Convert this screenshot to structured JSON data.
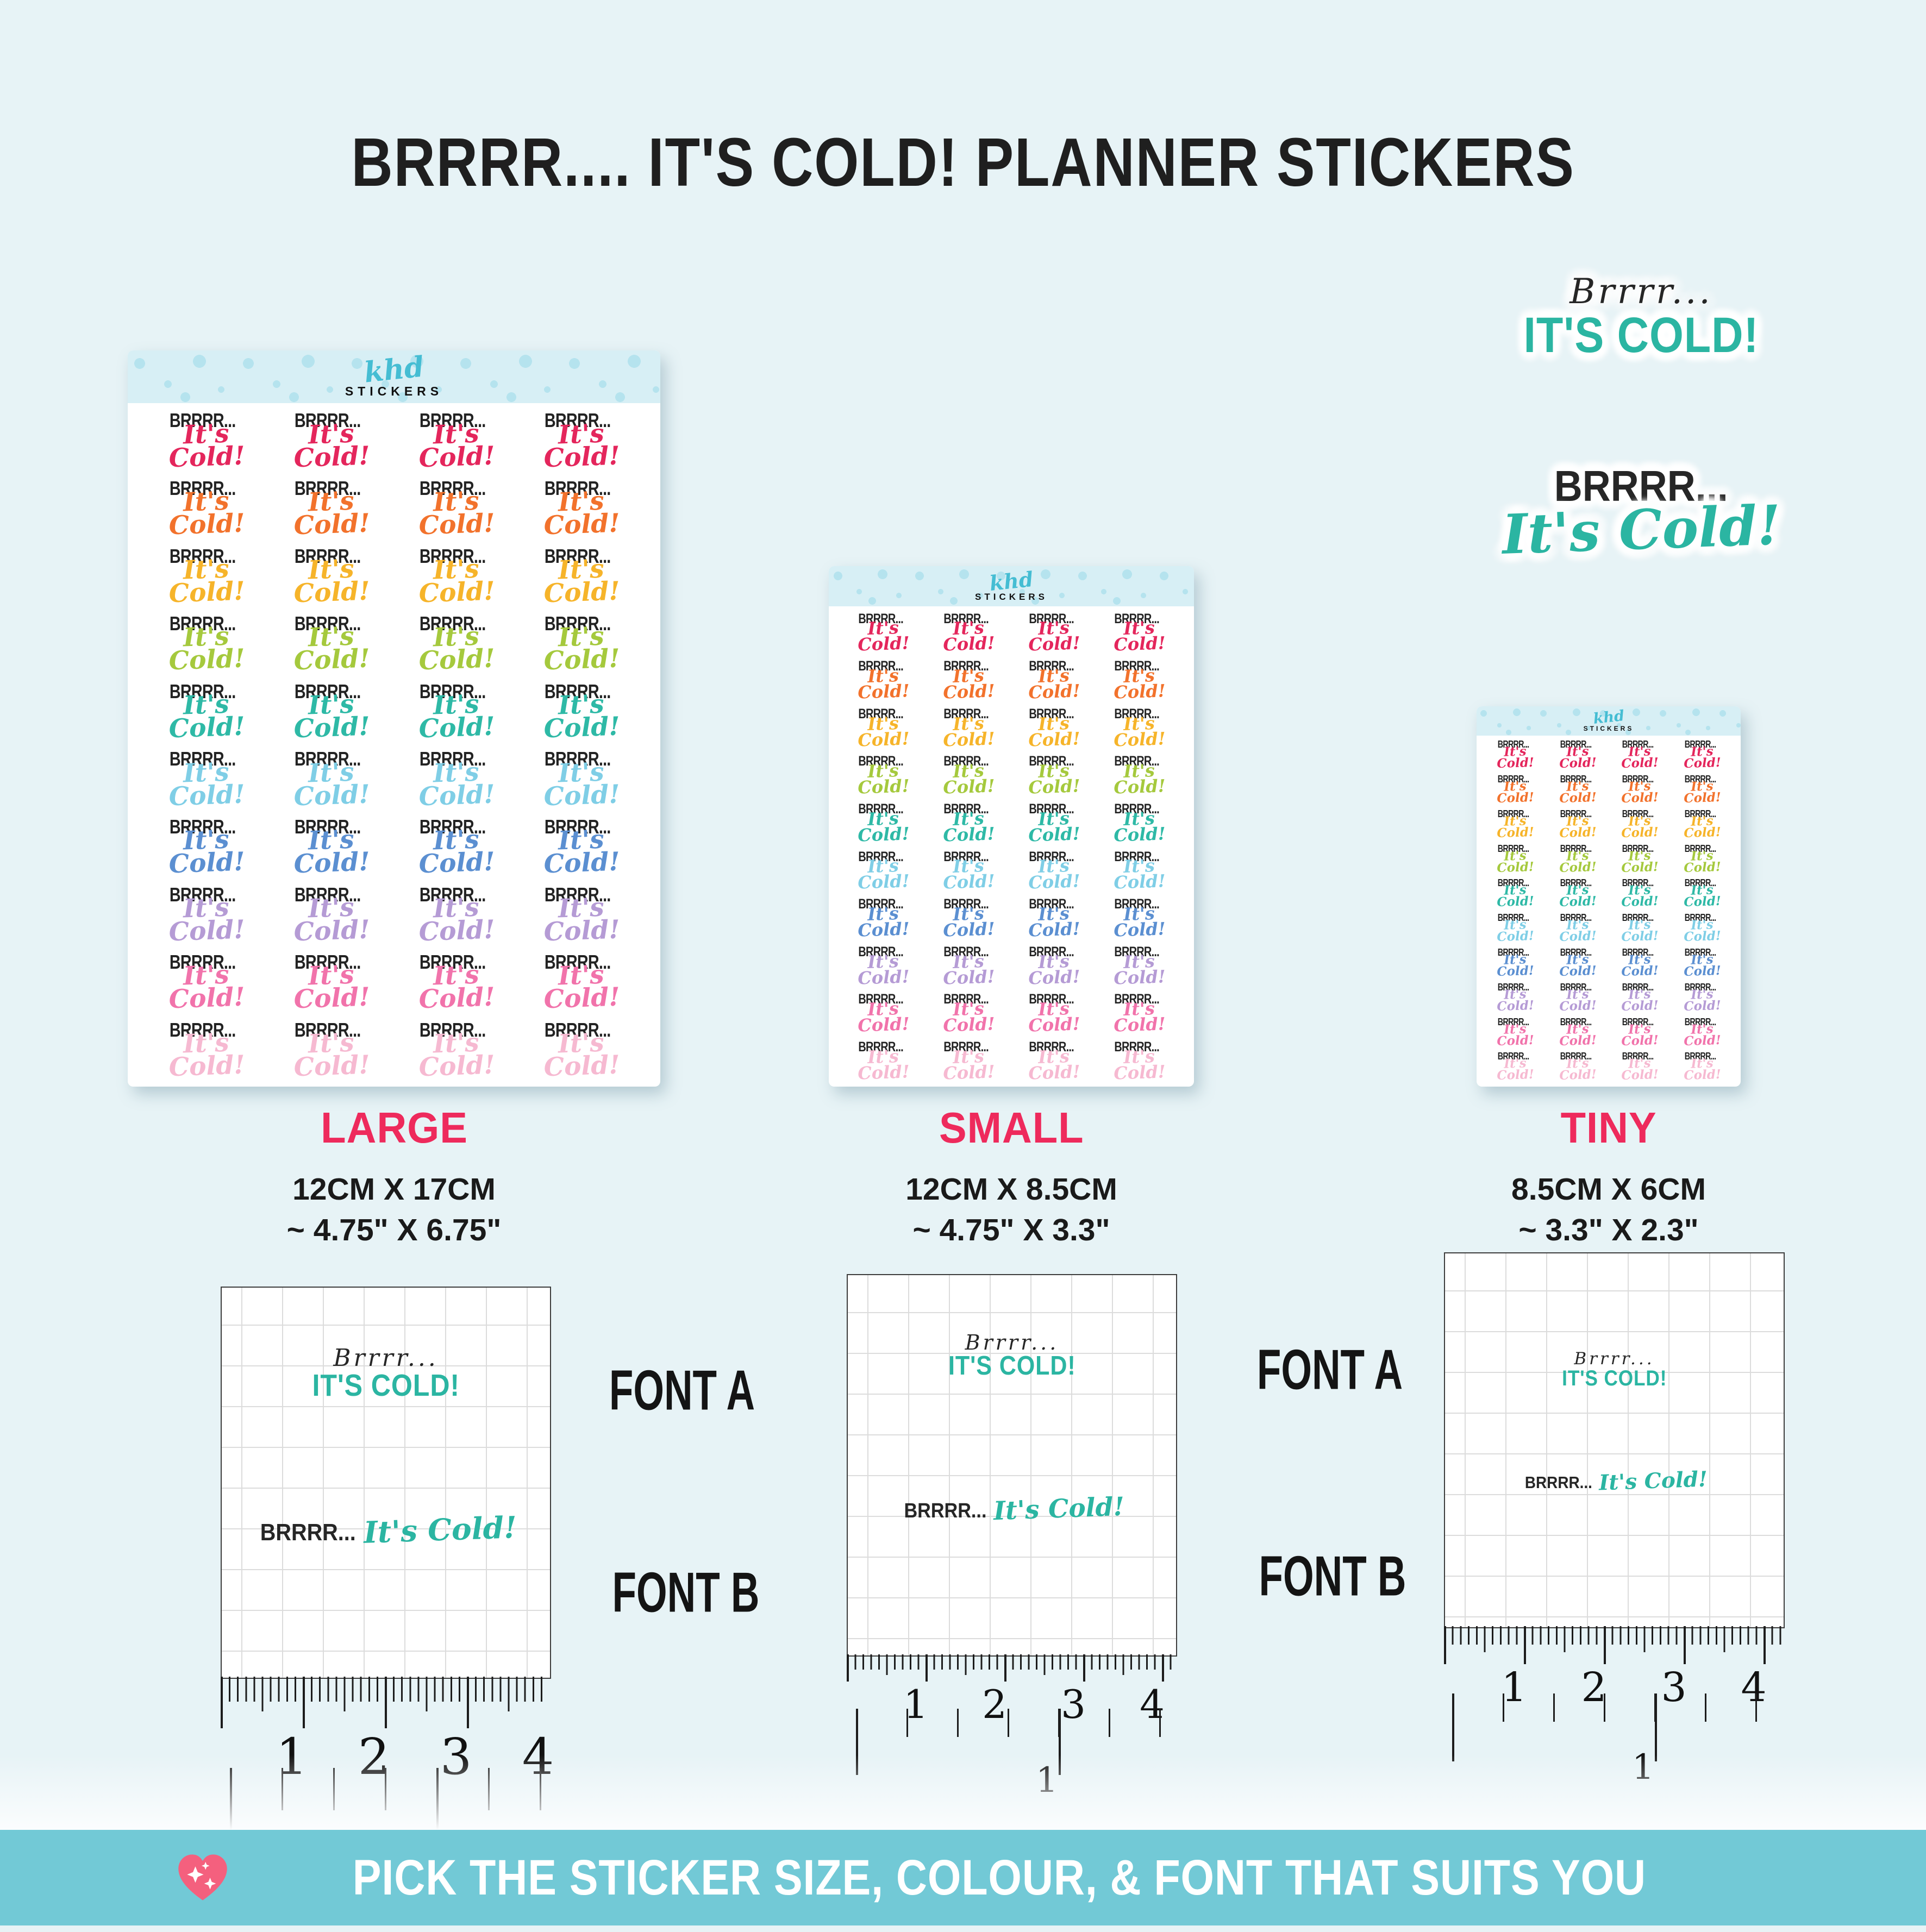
{
  "page": {
    "background": "#e7f3f6"
  },
  "title": "BRRRR.... IT'S COLD! PLANNER STICKERS",
  "brand": {
    "name": "khd",
    "tagline": "STICKERS",
    "logo_color": "#45bdd3"
  },
  "sticker": {
    "line1": "BRRRR...",
    "line2": "It's Cold!"
  },
  "sticker_colors": [
    "#e4265c",
    "#f2722c",
    "#f6b42a",
    "#a5c93d",
    "#2eb9a6",
    "#7fcee6",
    "#5b8fd1",
    "#b59bd5",
    "#f173ab",
    "#f6b9d1"
  ],
  "sheet_columns": 4,
  "sheets": [
    {
      "id": "large",
      "label": "LARGE",
      "size_metric": "12CM X 17CM",
      "size_imperial": "~ 4.75\" X 6.75\""
    },
    {
      "id": "small",
      "label": "SMALL",
      "size_metric": "12CM X 8.5CM",
      "size_imperial": "~ 4.75\" X 3.3\""
    },
    {
      "id": "tiny",
      "label": "TINY",
      "size_metric": "8.5CM X 6CM",
      "size_imperial": "~ 3.3\" X 2.3\""
    }
  ],
  "fonts": {
    "accent": "#2bb5a2",
    "a": {
      "label": "FONT A",
      "line1": "Brrrr...",
      "line2": "IT'S COLD!"
    },
    "b": {
      "label": "FONT B",
      "line1": "BRRRR...",
      "line2": "It's Cold!"
    }
  },
  "rulers": {
    "cm_numbers": [
      "1",
      "2",
      "3",
      "4"
    ],
    "inch_number": "1"
  },
  "banner": {
    "icon": "sparkling-heart-icon",
    "heart_color": "#f4607e",
    "background": "#72c9d6",
    "text": "PICK THE STICKER SIZE, COLOUR, & FONT THAT SUITS YOU"
  },
  "label_color": "#ee2a5c"
}
